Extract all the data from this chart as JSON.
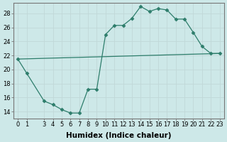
{
  "xlabel": "Humidex (Indice chaleur)",
  "line1_x": [
    0,
    1,
    3,
    4,
    5,
    6,
    7,
    8,
    9,
    10,
    11,
    12,
    13,
    14,
    15,
    16,
    17,
    18,
    19,
    20,
    21,
    22,
    23
  ],
  "line1_y": [
    21.5,
    19.5,
    15.5,
    15.0,
    14.3,
    13.8,
    13.8,
    17.2,
    17.2,
    25.0,
    26.3,
    26.3,
    27.3,
    29.0,
    28.3,
    28.7,
    28.5,
    27.2,
    27.2,
    25.3,
    23.3,
    22.3,
    22.3
  ],
  "line2_x": [
    0,
    23
  ],
  "line2_y": [
    21.5,
    22.3
  ],
  "line_color": "#2d7d6b",
  "marker": "D",
  "marker_size": 2.5,
  "bg_color": "#cde8e8",
  "grid_color": "#b8d8d8",
  "xlim": [
    -0.5,
    23.5
  ],
  "ylim": [
    13.0,
    29.5
  ],
  "yticks": [
    14,
    16,
    18,
    20,
    22,
    24,
    26,
    28
  ],
  "xticks": [
    0,
    1,
    3,
    4,
    5,
    6,
    7,
    8,
    9,
    10,
    11,
    12,
    13,
    14,
    15,
    16,
    17,
    18,
    19,
    20,
    21,
    22,
    23
  ],
  "tick_fontsize": 6,
  "label_fontsize": 7.5
}
